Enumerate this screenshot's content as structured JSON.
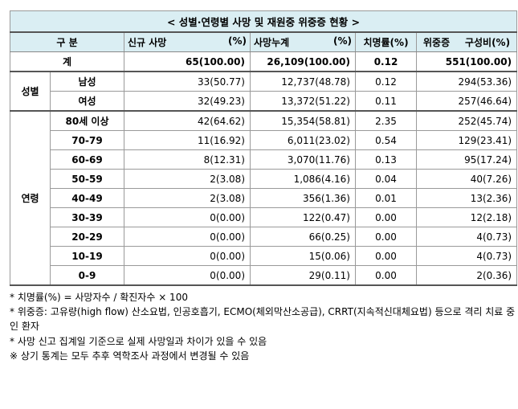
{
  "title": "< 성별·연령별 사망 및 재원중 위중증 현황 >",
  "header": {
    "category": "구 분",
    "new_deaths": "신규 사망",
    "new_deaths_unit": "(%)",
    "cum_deaths": "사망누계",
    "cum_deaths_unit": "(%)",
    "cfr": "치명률(%)",
    "severe": "위중증",
    "severe_unit": "구성비(%)"
  },
  "total": {
    "label": "계",
    "new_deaths": "65(100.00)",
    "cum_deaths": "26,109(100.00)",
    "cfr": "0.12",
    "severe": "551(100.00)"
  },
  "sex": {
    "group_label": "성별",
    "rows": [
      {
        "label": "남성",
        "new_deaths": "33(50.77)",
        "cum_deaths": "12,737(48.78)",
        "cfr": "0.12",
        "severe": "294(53.36)"
      },
      {
        "label": "여성",
        "new_deaths": "32(49.23)",
        "cum_deaths": "13,372(51.22)",
        "cfr": "0.11",
        "severe": "257(46.64)"
      }
    ]
  },
  "age": {
    "group_label": "연령",
    "rows": [
      {
        "label": "80세 이상",
        "new_deaths": "42(64.62)",
        "cum_deaths": "15,354(58.81)",
        "cfr": "2.35",
        "severe": "252(45.74)"
      },
      {
        "label": "70-79",
        "new_deaths": "11(16.92)",
        "cum_deaths": "6,011(23.02)",
        "cfr": "0.54",
        "severe": "129(23.41)"
      },
      {
        "label": "60-69",
        "new_deaths": "8(12.31)",
        "cum_deaths": "3,070(11.76)",
        "cfr": "0.13",
        "severe": "95(17.24)"
      },
      {
        "label": "50-59",
        "new_deaths": "2(3.08)",
        "cum_deaths": "1,086(4.16)",
        "cfr": "0.04",
        "severe": "40(7.26)"
      },
      {
        "label": "40-49",
        "new_deaths": "2(3.08)",
        "cum_deaths": "356(1.36)",
        "cfr": "0.01",
        "severe": "13(2.36)"
      },
      {
        "label": "30-39",
        "new_deaths": "0(0.00)",
        "cum_deaths": "122(0.47)",
        "cfr": "0.00",
        "severe": "12(2.18)"
      },
      {
        "label": "20-29",
        "new_deaths": "0(0.00)",
        "cum_deaths": "66(0.25)",
        "cfr": "0.00",
        "severe": "4(0.73)"
      },
      {
        "label": "10-19",
        "new_deaths": "0(0.00)",
        "cum_deaths": "15(0.06)",
        "cfr": "0.00",
        "severe": "4(0.73)"
      },
      {
        "label": "0-9",
        "new_deaths": "0(0.00)",
        "cum_deaths": "29(0.11)",
        "cfr": "0.00",
        "severe": "2(0.36)"
      }
    ]
  },
  "notes": [
    "* 치명률(%) = 사망자수 / 확진자수 × 100",
    "* 위중증: 고유량(high flow) 산소요법, 인공호흡기, ECMO(체외막산소공급), CRRT(지속적신대체요법) 등으로 격리 치료 중인 환자",
    "* 사망 신고 집계일 기준으로 실제 사망일과 차이가 있을 수 있음",
    "※ 상기 통계는 모두 추후 역학조사 과정에서 변경될 수 있음"
  ]
}
